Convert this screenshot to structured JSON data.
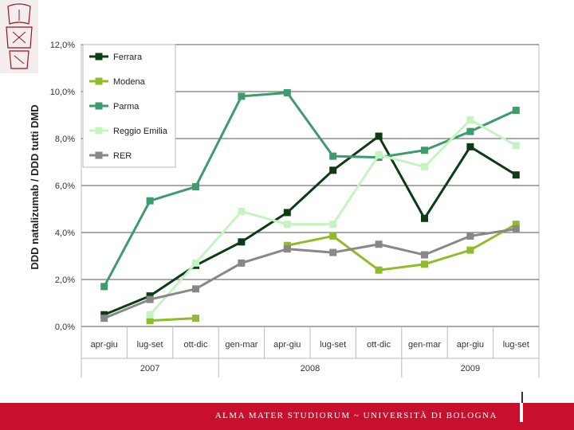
{
  "chart_data": {
    "type": "line",
    "title": "",
    "ylabel": "DDD natalizumab / DDD tutti DMD",
    "xlabel": "",
    "ylim": [
      0,
      12
    ],
    "yticks": [
      "0,0%",
      "2,0%",
      "4,0%",
      "6,0%",
      "8,0%",
      "10,0%",
      "12,0%"
    ],
    "categories": [
      "apr-giu",
      "lug-set",
      "ott-dic",
      "gen-mar",
      "apr-giu",
      "lug-set",
      "ott-dic",
      "gen-mar",
      "apr-giu",
      "lug-set"
    ],
    "year_groups": [
      {
        "label": "2007",
        "span": 3
      },
      {
        "label": "2008",
        "span": 4
      },
      {
        "label": "2009",
        "span": 3
      }
    ],
    "legend_position": "top-left",
    "grid": true,
    "series": [
      {
        "name": "Ferrara",
        "color": "#0d3b13",
        "values": [
          0.5,
          1.3,
          2.6,
          3.6,
          4.85,
          6.65,
          8.1,
          4.6,
          7.65,
          6.45
        ]
      },
      {
        "name": "Modena",
        "color": "#8fbd2a",
        "values": [
          null,
          0.25,
          0.35,
          null,
          3.45,
          3.85,
          2.4,
          2.65,
          3.25,
          4.35
        ]
      },
      {
        "name": "Parma",
        "color": "#3d9b6c",
        "values": [
          1.7,
          5.35,
          5.95,
          9.8,
          9.95,
          7.25,
          7.2,
          7.5,
          8.3,
          9.2
        ]
      },
      {
        "name": "Reggio Emilia",
        "color": "#c4f5c0",
        "values": [
          null,
          0.5,
          2.7,
          4.9,
          4.35,
          4.35,
          7.3,
          6.8,
          8.8,
          7.7
        ]
      },
      {
        "name": "RER",
        "color": "#888888",
        "values": [
          0.35,
          1.15,
          1.6,
          2.7,
          3.3,
          3.15,
          3.5,
          3.05,
          3.85,
          4.15
        ]
      }
    ]
  },
  "footer": {
    "institution": "ALMA MATER STUDIORUM ~ UNIVERSITÀ DI BOLOGNA"
  }
}
